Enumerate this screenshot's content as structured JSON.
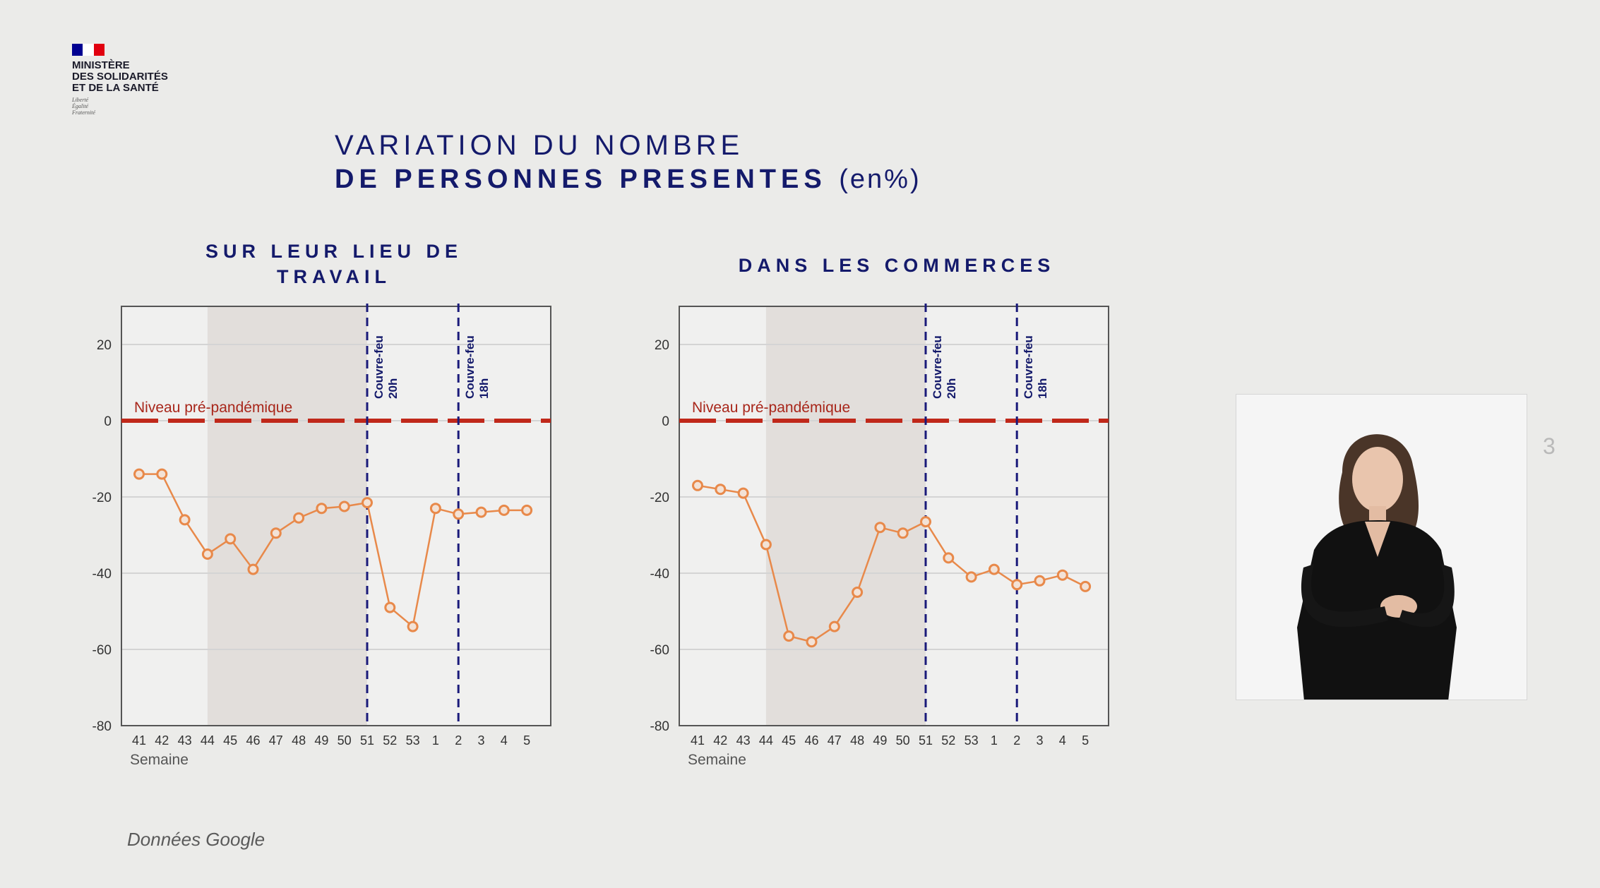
{
  "logo": {
    "lines": [
      "Ministère",
      "des Solidarités",
      "et de la Santé"
    ],
    "motto": [
      "Liberté",
      "Égalité",
      "Fraternité"
    ]
  },
  "title": {
    "line1": "VARIATION DU NOMBRE",
    "line2": "DE PERSONNES PRESENTES",
    "unit": "(en%)"
  },
  "source": "Données Google",
  "page_number": "3",
  "colors": {
    "navy": "#141a6b",
    "series": "#e8894a",
    "baseline": "#c0281a",
    "shade": "#e2dedb"
  },
  "chart_data": [
    {
      "type": "line",
      "title": "SUR LEUR LIEU DE TRAVAIL",
      "xlabel": "Semaine",
      "categories": [
        "41",
        "42",
        "43",
        "44",
        "45",
        "46",
        "47",
        "48",
        "49",
        "50",
        "51",
        "52",
        "53",
        "1",
        "2",
        "3",
        "4",
        "5"
      ],
      "values": [
        -14,
        -14,
        -26,
        -35,
        -31,
        -39,
        -29.5,
        -25.5,
        -23,
        -22.5,
        -21.5,
        -49,
        -54,
        -23,
        -24.5,
        -24,
        -23.5,
        -23.5
      ],
      "ylim": [
        -80,
        30
      ],
      "yticks": [
        20,
        0,
        -20,
        -40,
        -60,
        -80
      ],
      "shaded_weeks": [
        "44",
        "51"
      ],
      "baseline": {
        "value": 0,
        "label": "Niveau pré-pandémique"
      },
      "events": [
        {
          "week": "51",
          "label": [
            "Couvre-feu",
            "20h"
          ]
        },
        {
          "week": "2",
          "label": [
            "Couvre-feu",
            "18h"
          ]
        }
      ],
      "grid": true
    },
    {
      "type": "line",
      "title": "DANS LES COMMERCES",
      "xlabel": "Semaine",
      "categories": [
        "41",
        "42",
        "43",
        "44",
        "45",
        "46",
        "47",
        "48",
        "49",
        "50",
        "51",
        "52",
        "53",
        "1",
        "2",
        "3",
        "4",
        "5"
      ],
      "values": [
        -17,
        -18,
        -19,
        -32.5,
        -56.5,
        -58,
        -54,
        -45,
        -28,
        -29.5,
        -26.5,
        -36,
        -41,
        -39,
        -43,
        -42,
        -40.5,
        -43.5
      ],
      "ylim": [
        -80,
        30
      ],
      "yticks": [
        20,
        0,
        -20,
        -40,
        -60,
        -80
      ],
      "shaded_weeks": [
        "44",
        "51"
      ],
      "baseline": {
        "value": 0,
        "label": "Niveau pré-pandémique"
      },
      "events": [
        {
          "week": "51",
          "label": [
            "Couvre-feu",
            "20h"
          ]
        },
        {
          "week": "2",
          "label": [
            "Couvre-feu",
            "18h"
          ]
        }
      ],
      "grid": true
    }
  ]
}
